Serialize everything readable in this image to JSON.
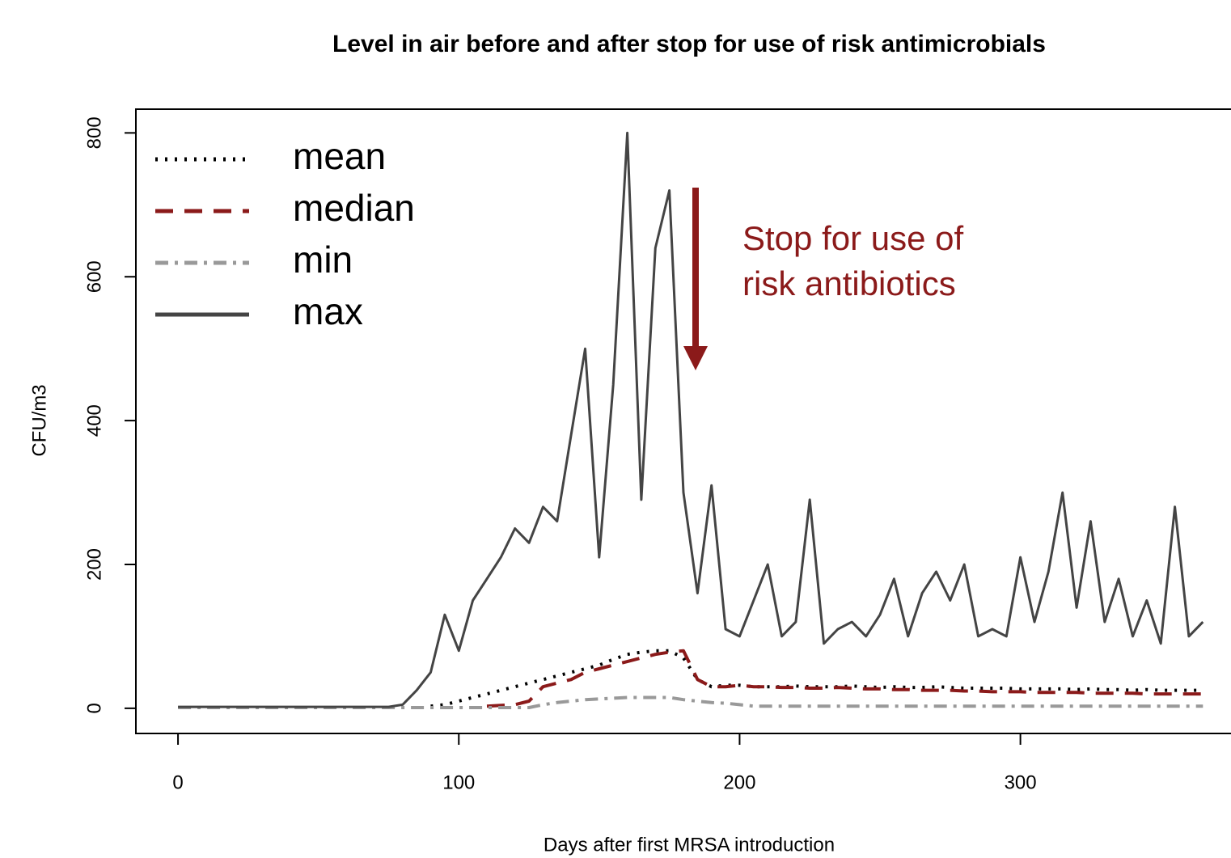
{
  "chart_data": {
    "type": "line",
    "title": "Level in air before and after stop for use of risk antimicrobials",
    "x_label": "Days after first MRSA introduction",
    "y_label": "CFU/m3",
    "annotation": [
      "Stop for use of",
      "risk antibiotics"
    ],
    "annotation_color": "#8b1a1a",
    "legend": "upper left",
    "xlim": [
      -15,
      375
    ],
    "ylim": [
      -35,
      833
    ],
    "xticks": [
      0,
      100,
      200,
      300
    ],
    "yticks": [
      0,
      200,
      400,
      600,
      800
    ],
    "x": [
      0,
      5,
      10,
      15,
      20,
      25,
      30,
      35,
      40,
      45,
      50,
      55,
      60,
      65,
      70,
      75,
      80,
      85,
      90,
      95,
      100,
      105,
      110,
      115,
      120,
      125,
      130,
      135,
      140,
      145,
      150,
      155,
      160,
      165,
      170,
      175,
      180,
      185,
      190,
      195,
      200,
      205,
      210,
      215,
      220,
      225,
      230,
      235,
      240,
      245,
      250,
      255,
      260,
      265,
      270,
      275,
      280,
      285,
      290,
      295,
      300,
      305,
      310,
      315,
      320,
      325,
      330,
      335,
      340,
      345,
      350,
      355,
      360,
      365
    ],
    "series": [
      {
        "name": "mean",
        "color": "#000000",
        "dash": "3 9",
        "values": [
          null,
          null,
          null,
          null,
          null,
          null,
          null,
          null,
          null,
          null,
          null,
          null,
          null,
          null,
          null,
          null,
          null,
          null,
          3,
          5,
          10,
          15,
          20,
          25,
          30,
          35,
          40,
          45,
          50,
          55,
          60,
          68,
          75,
          78,
          80,
          80,
          70,
          40,
          30,
          32,
          32,
          30,
          30,
          30,
          31,
          30,
          30,
          30,
          31,
          30,
          29,
          30,
          29,
          29,
          30,
          29,
          28,
          28,
          28,
          28,
          27,
          27,
          27,
          27,
          26,
          27,
          26,
          26,
          25,
          26,
          25,
          25,
          25,
          25
        ]
      },
      {
        "name": "median",
        "color": "#8b1a1a",
        "dash": "22 14",
        "values": [
          null,
          null,
          null,
          null,
          null,
          null,
          null,
          null,
          null,
          null,
          null,
          null,
          null,
          null,
          null,
          null,
          null,
          null,
          null,
          null,
          null,
          null,
          3,
          4,
          5,
          10,
          30,
          35,
          40,
          50,
          55,
          60,
          65,
          70,
          75,
          78,
          80,
          40,
          30,
          30,
          32,
          30,
          30,
          29,
          29,
          28,
          28,
          29,
          28,
          27,
          27,
          26,
          26,
          25,
          25,
          25,
          24,
          24,
          23,
          23,
          23,
          22,
          22,
          22,
          22,
          21,
          21,
          21,
          21,
          20,
          20,
          20,
          20,
          20
        ]
      },
      {
        "name": "min",
        "color": "#999999",
        "dash": "16 8 4 8",
        "values": [
          1,
          1,
          1,
          1,
          1,
          1,
          1,
          1,
          1,
          1,
          1,
          1,
          1,
          1,
          1,
          1,
          1,
          1,
          1,
          1,
          1,
          1,
          1,
          1,
          1,
          1,
          5,
          8,
          10,
          12,
          13,
          14,
          15,
          15,
          15,
          15,
          12,
          10,
          8,
          7,
          5,
          3,
          3,
          3,
          3,
          3,
          3,
          3,
          3,
          3,
          3,
          3,
          3,
          3,
          3,
          3,
          3,
          3,
          3,
          3,
          3,
          3,
          3,
          3,
          3,
          3,
          3,
          3,
          3,
          3,
          3,
          3,
          3,
          3
        ]
      },
      {
        "name": "max",
        "color": "#444444",
        "dash": "none",
        "values": [
          2,
          2,
          2,
          2,
          2,
          2,
          2,
          2,
          2,
          2,
          2,
          2,
          2,
          2,
          2,
          2,
          5,
          25,
          50,
          130,
          80,
          150,
          180,
          210,
          250,
          230,
          280,
          260,
          380,
          500,
          210,
          450,
          800,
          290,
          640,
          720,
          300,
          160,
          310,
          110,
          100,
          150,
          200,
          100,
          120,
          290,
          90,
          110,
          120,
          100,
          130,
          180,
          100,
          160,
          190,
          150,
          200,
          100,
          110,
          100,
          210,
          120,
          190,
          300,
          140,
          260,
          120,
          180,
          100,
          150,
          90,
          280,
          100,
          120
        ]
      }
    ]
  }
}
